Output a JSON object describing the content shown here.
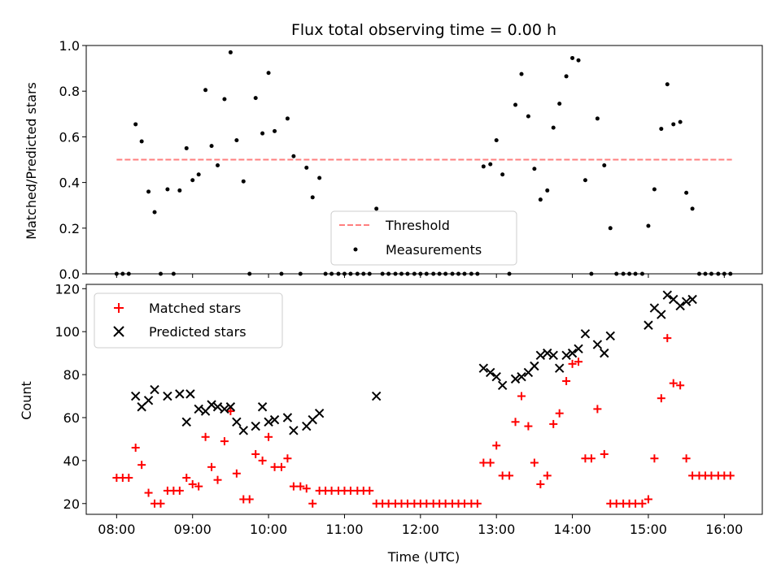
{
  "chart_data": [
    {
      "type": "scatter",
      "title": "Flux total observing time = 0.00 h",
      "xlabel": "",
      "ylabel": "Matched/Predicted stars",
      "ylim": [
        0,
        1.0
      ],
      "yticks": [
        "0.0",
        "0.2",
        "0.4",
        "0.6",
        "0.8",
        "1.0"
      ],
      "legend_position": "lower-center",
      "threshold": {
        "name": "Threshold",
        "value": 0.5,
        "x_start": 8.0,
        "x_end": 16.1,
        "color": "#ff7f7f",
        "style": "dashed"
      },
      "series": [
        {
          "name": "Measurements",
          "color": "#000000",
          "marker": "dot",
          "points": [
            [
              8.0,
              0
            ],
            [
              8.08,
              0
            ],
            [
              8.16,
              0
            ],
            [
              8.25,
              0.655
            ],
            [
              8.33,
              0.58
            ],
            [
              8.42,
              0.36
            ],
            [
              8.5,
              0.27
            ],
            [
              8.58,
              0
            ],
            [
              8.67,
              0.37
            ],
            [
              8.75,
              0
            ],
            [
              8.83,
              0.365
            ],
            [
              8.92,
              0.55
            ],
            [
              9.0,
              0.41
            ],
            [
              9.08,
              0.435
            ],
            [
              9.17,
              0.805
            ],
            [
              9.25,
              0.56
            ],
            [
              9.33,
              0.475
            ],
            [
              9.42,
              0.765
            ],
            [
              9.5,
              0.97
            ],
            [
              9.58,
              0.585
            ],
            [
              9.67,
              0.405
            ],
            [
              9.75,
              0
            ],
            [
              9.83,
              0.77
            ],
            [
              9.92,
              0.615
            ],
            [
              10.0,
              0.88
            ],
            [
              10.08,
              0.625
            ],
            [
              10.17,
              0
            ],
            [
              10.25,
              0.68
            ],
            [
              10.33,
              0.515
            ],
            [
              10.42,
              0
            ],
            [
              10.5,
              0.465
            ],
            [
              10.58,
              0.335
            ],
            [
              10.67,
              0.42
            ],
            [
              10.75,
              0
            ],
            [
              10.83,
              0
            ],
            [
              10.92,
              0
            ],
            [
              11.0,
              0
            ],
            [
              11.08,
              0
            ],
            [
              11.17,
              0
            ],
            [
              11.25,
              0
            ],
            [
              11.33,
              0
            ],
            [
              11.42,
              0.285
            ],
            [
              11.5,
              0
            ],
            [
              11.58,
              0
            ],
            [
              11.67,
              0
            ],
            [
              11.75,
              0
            ],
            [
              11.83,
              0
            ],
            [
              11.92,
              0
            ],
            [
              12.0,
              0
            ],
            [
              12.08,
              0
            ],
            [
              12.17,
              0
            ],
            [
              12.25,
              0
            ],
            [
              12.33,
              0
            ],
            [
              12.42,
              0
            ],
            [
              12.5,
              0
            ],
            [
              12.58,
              0
            ],
            [
              12.67,
              0
            ],
            [
              12.75,
              0
            ],
            [
              12.83,
              0.47
            ],
            [
              12.92,
              0.48
            ],
            [
              13.0,
              0.585
            ],
            [
              13.08,
              0.435
            ],
            [
              13.17,
              0
            ],
            [
              13.25,
              0.74
            ],
            [
              13.33,
              0.875
            ],
            [
              13.42,
              0.69
            ],
            [
              13.5,
              0.46
            ],
            [
              13.58,
              0.325
            ],
            [
              13.67,
              0.365
            ],
            [
              13.75,
              0.64
            ],
            [
              13.83,
              0.745
            ],
            [
              13.92,
              0.865
            ],
            [
              14.0,
              0.945
            ],
            [
              14.08,
              0.935
            ],
            [
              14.17,
              0.41
            ],
            [
              14.25,
              0
            ],
            [
              14.33,
              0.68
            ],
            [
              14.42,
              0.475
            ],
            [
              14.5,
              0.2
            ],
            [
              14.58,
              0
            ],
            [
              14.67,
              0
            ],
            [
              14.75,
              0
            ],
            [
              14.83,
              0
            ],
            [
              14.92,
              0
            ],
            [
              15.0,
              0.21
            ],
            [
              15.08,
              0.37
            ],
            [
              15.17,
              0.635
            ],
            [
              15.25,
              0.83
            ],
            [
              15.33,
              0.655
            ],
            [
              15.42,
              0.665
            ],
            [
              15.5,
              0.355
            ],
            [
              15.58,
              0.285
            ],
            [
              15.67,
              0
            ],
            [
              15.75,
              0
            ],
            [
              15.83,
              0
            ],
            [
              15.92,
              0
            ],
            [
              16.0,
              0
            ],
            [
              16.08,
              0
            ]
          ]
        }
      ]
    },
    {
      "type": "scatter",
      "title": "",
      "xlabel": "Time (UTC)",
      "ylabel": "Count",
      "ylim": [
        15,
        122
      ],
      "yticks": [
        "20",
        "40",
        "60",
        "80",
        "100",
        "120"
      ],
      "xticks": [
        "08:00",
        "09:00",
        "10:00",
        "11:00",
        "12:00",
        "13:00",
        "14:00",
        "15:00",
        "16:00"
      ],
      "legend_position": "upper-left",
      "series": [
        {
          "name": "Matched stars",
          "color": "#ff0000",
          "marker": "plus",
          "points": [
            [
              8.0,
              32
            ],
            [
              8.08,
              32
            ],
            [
              8.16,
              32
            ],
            [
              8.25,
              46
            ],
            [
              8.33,
              38
            ],
            [
              8.42,
              25
            ],
            [
              8.5,
              20
            ],
            [
              8.58,
              20
            ],
            [
              8.67,
              26
            ],
            [
              8.75,
              26
            ],
            [
              8.83,
              26
            ],
            [
              8.92,
              32
            ],
            [
              9.0,
              29
            ],
            [
              9.08,
              28
            ],
            [
              9.17,
              51
            ],
            [
              9.25,
              37
            ],
            [
              9.33,
              31
            ],
            [
              9.42,
              49
            ],
            [
              9.5,
              63
            ],
            [
              9.58,
              34
            ],
            [
              9.67,
              22
            ],
            [
              9.75,
              22
            ],
            [
              9.83,
              43
            ],
            [
              9.92,
              40
            ],
            [
              10.0,
              51
            ],
            [
              10.08,
              37
            ],
            [
              10.17,
              37
            ],
            [
              10.25,
              41
            ],
            [
              10.33,
              28
            ],
            [
              10.42,
              28
            ],
            [
              10.5,
              27
            ],
            [
              10.58,
              20
            ],
            [
              10.67,
              26
            ],
            [
              10.75,
              26
            ],
            [
              10.83,
              26
            ],
            [
              10.92,
              26
            ],
            [
              11.0,
              26
            ],
            [
              11.08,
              26
            ],
            [
              11.17,
              26
            ],
            [
              11.25,
              26
            ],
            [
              11.33,
              26
            ],
            [
              11.42,
              20
            ],
            [
              11.5,
              20
            ],
            [
              11.58,
              20
            ],
            [
              11.67,
              20
            ],
            [
              11.75,
              20
            ],
            [
              11.83,
              20
            ],
            [
              11.92,
              20
            ],
            [
              12.0,
              20
            ],
            [
              12.08,
              20
            ],
            [
              12.17,
              20
            ],
            [
              12.25,
              20
            ],
            [
              12.33,
              20
            ],
            [
              12.42,
              20
            ],
            [
              12.5,
              20
            ],
            [
              12.58,
              20
            ],
            [
              12.67,
              20
            ],
            [
              12.75,
              20
            ],
            [
              12.83,
              39
            ],
            [
              12.92,
              39
            ],
            [
              13.0,
              47
            ],
            [
              13.08,
              33
            ],
            [
              13.17,
              33
            ],
            [
              13.25,
              58
            ],
            [
              13.33,
              70
            ],
            [
              13.42,
              56
            ],
            [
              13.5,
              39
            ],
            [
              13.58,
              29
            ],
            [
              13.67,
              33
            ],
            [
              13.75,
              57
            ],
            [
              13.83,
              62
            ],
            [
              13.92,
              77
            ],
            [
              14.0,
              85
            ],
            [
              14.08,
              86
            ],
            [
              14.17,
              41
            ],
            [
              14.25,
              41
            ],
            [
              14.33,
              64
            ],
            [
              14.42,
              43
            ],
            [
              14.5,
              20
            ],
            [
              14.58,
              20
            ],
            [
              14.67,
              20
            ],
            [
              14.75,
              20
            ],
            [
              14.83,
              20
            ],
            [
              14.92,
              20
            ],
            [
              15.0,
              22
            ],
            [
              15.08,
              41
            ],
            [
              15.17,
              69
            ],
            [
              15.25,
              97
            ],
            [
              15.33,
              76
            ],
            [
              15.42,
              75
            ],
            [
              15.5,
              41
            ],
            [
              15.58,
              33
            ],
            [
              15.67,
              33
            ],
            [
              15.75,
              33
            ],
            [
              15.83,
              33
            ],
            [
              15.92,
              33
            ],
            [
              16.0,
              33
            ],
            [
              16.08,
              33
            ]
          ]
        },
        {
          "name": "Predicted stars",
          "color": "#000000",
          "marker": "x",
          "points": [
            [
              8.25,
              70
            ],
            [
              8.33,
              65
            ],
            [
              8.42,
              68
            ],
            [
              8.5,
              73
            ],
            [
              8.67,
              70
            ],
            [
              8.83,
              71
            ],
            [
              8.92,
              58
            ],
            [
              8.97,
              71
            ],
            [
              9.08,
              64
            ],
            [
              9.17,
              63
            ],
            [
              9.25,
              66
            ],
            [
              9.33,
              65
            ],
            [
              9.42,
              64
            ],
            [
              9.5,
              65
            ],
            [
              9.58,
              58
            ],
            [
              9.67,
              54
            ],
            [
              9.83,
              56
            ],
            [
              9.92,
              65
            ],
            [
              10.0,
              58
            ],
            [
              10.08,
              59
            ],
            [
              10.25,
              60
            ],
            [
              10.33,
              54
            ],
            [
              10.5,
              56
            ],
            [
              10.58,
              59
            ],
            [
              10.67,
              62
            ],
            [
              11.42,
              70
            ],
            [
              12.83,
              83
            ],
            [
              12.92,
              81
            ],
            [
              13.0,
              79
            ],
            [
              13.08,
              75
            ],
            [
              13.25,
              78
            ],
            [
              13.33,
              79
            ],
            [
              13.42,
              81
            ],
            [
              13.5,
              84
            ],
            [
              13.58,
              89
            ],
            [
              13.67,
              90
            ],
            [
              13.75,
              89
            ],
            [
              13.83,
              83
            ],
            [
              13.92,
              89
            ],
            [
              14.0,
              90
            ],
            [
              14.08,
              92
            ],
            [
              14.17,
              99
            ],
            [
              14.33,
              94
            ],
            [
              14.42,
              90
            ],
            [
              14.5,
              98
            ],
            [
              15.0,
              103
            ],
            [
              15.08,
              111
            ],
            [
              15.17,
              108
            ],
            [
              15.25,
              117
            ],
            [
              15.33,
              115
            ],
            [
              15.42,
              112
            ],
            [
              15.5,
              114
            ],
            [
              15.58,
              115
            ]
          ]
        }
      ]
    }
  ]
}
